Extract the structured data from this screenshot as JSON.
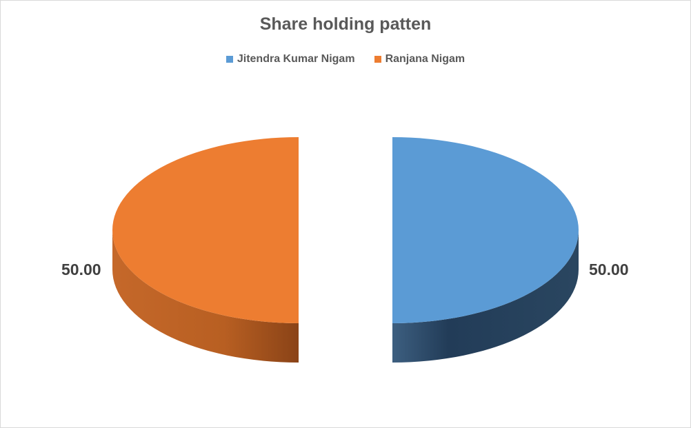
{
  "chart_data": {
    "type": "pie",
    "title": "Share holding patten",
    "legend_position": "top",
    "categories": [
      "Jitendra Kumar Nigam",
      "Ranjana Nigam"
    ],
    "values": [
      50.0,
      50.0
    ],
    "data_labels": [
      "50.00",
      "50.00"
    ],
    "colors": [
      "#5b9bd5",
      "#ed7d31"
    ],
    "style": "3d-exploded"
  }
}
